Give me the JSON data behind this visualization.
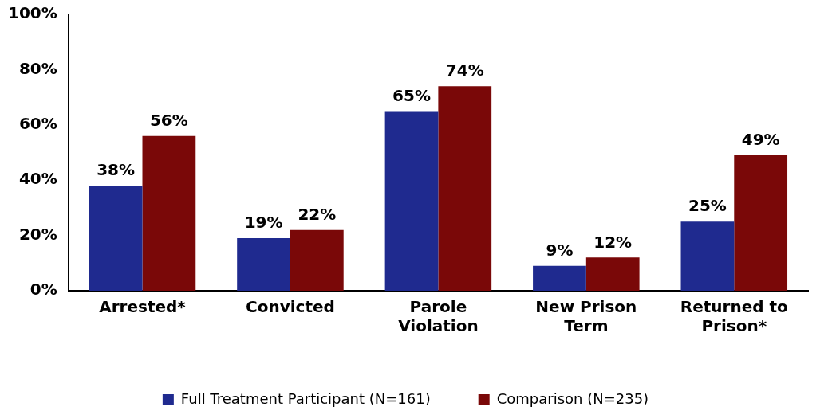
{
  "chart_data": {
    "type": "bar",
    "categories": [
      "Arrested*",
      "Convicted",
      "Parole Violation",
      "New Prison Term",
      "Returned to Prison*"
    ],
    "series": [
      {
        "name": "Full Treatment Participant (N=161)",
        "color": "#1f2a8f",
        "values": [
          38,
          19,
          65,
          9,
          25
        ],
        "value_labels": [
          "38%",
          "19%",
          "65%",
          "9%",
          "25%"
        ]
      },
      {
        "name": "Comparison (N=235)",
        "color": "#7a0808",
        "values": [
          56,
          22,
          74,
          12,
          49
        ],
        "value_labels": [
          "56%",
          "22%",
          "74%",
          "12%",
          "49%"
        ]
      }
    ],
    "ylim": [
      0,
      100
    ],
    "yticks": [
      {
        "value": 0,
        "label": "0%"
      },
      {
        "value": 20,
        "label": "20%"
      },
      {
        "value": 40,
        "label": "40%"
      },
      {
        "value": 60,
        "label": "60%"
      },
      {
        "value": 80,
        "label": "80%"
      },
      {
        "value": 100,
        "label": "100%"
      }
    ],
    "grid": false,
    "legend": "bottom"
  }
}
